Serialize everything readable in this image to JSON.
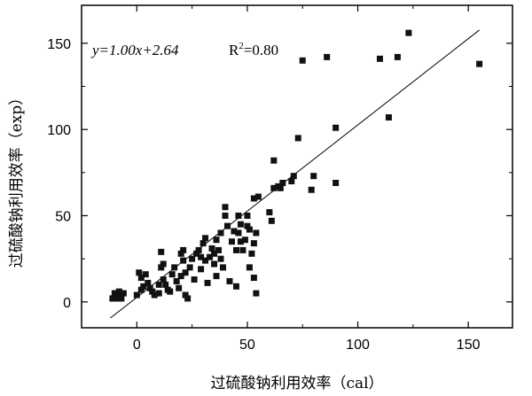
{
  "chart_data": {
    "type": "scatter",
    "xlabel": "过硫酸钠利用效率（cal）",
    "ylabel": "过硫酸钠利用效率（exp）",
    "xlim": [
      -25,
      170
    ],
    "ylim": [
      -15,
      172
    ],
    "xticks": [
      0,
      50,
      100,
      150
    ],
    "yticks": [
      0,
      50,
      100,
      150
    ],
    "annotation": {
      "equation": "y=1.00x+2.64",
      "r2_prefix": "R",
      "r2_sup": "2",
      "r2_suffix": "=0.80"
    },
    "fit_line": {
      "slope": 1.0,
      "intercept": 2.64,
      "x_range": [
        -12,
        155
      ]
    },
    "points": [
      [
        -11,
        2
      ],
      [
        -10,
        3
      ],
      [
        -9,
        4
      ],
      [
        -8,
        3
      ],
      [
        -7,
        5
      ],
      [
        -8,
        6
      ],
      [
        -10,
        5
      ],
      [
        -6,
        5
      ],
      [
        -9,
        2
      ],
      [
        -7,
        2
      ],
      [
        0,
        4
      ],
      [
        1,
        17
      ],
      [
        2,
        7
      ],
      [
        3,
        9
      ],
      [
        2,
        14
      ],
      [
        4,
        16
      ],
      [
        5,
        11
      ],
      [
        6,
        8
      ],
      [
        7,
        6
      ],
      [
        8,
        4
      ],
      [
        10,
        10
      ],
      [
        10,
        5
      ],
      [
        11,
        20
      ],
      [
        11,
        29
      ],
      [
        12,
        22
      ],
      [
        12,
        13
      ],
      [
        13,
        10
      ],
      [
        14,
        7
      ],
      [
        15,
        6
      ],
      [
        16,
        16
      ],
      [
        17,
        20
      ],
      [
        18,
        12
      ],
      [
        19,
        8
      ],
      [
        20,
        15
      ],
      [
        20,
        28
      ],
      [
        21,
        24
      ],
      [
        21,
        30
      ],
      [
        22,
        17
      ],
      [
        22,
        4
      ],
      [
        23,
        2
      ],
      [
        24,
        20
      ],
      [
        25,
        25
      ],
      [
        26,
        13
      ],
      [
        27,
        28
      ],
      [
        28,
        30
      ],
      [
        29,
        19
      ],
      [
        29,
        26
      ],
      [
        30,
        34
      ],
      [
        31,
        24
      ],
      [
        31,
        37
      ],
      [
        32,
        11
      ],
      [
        33,
        26
      ],
      [
        34,
        31
      ],
      [
        35,
        22
      ],
      [
        35,
        28
      ],
      [
        36,
        15
      ],
      [
        36,
        36
      ],
      [
        37,
        30
      ],
      [
        38,
        40
      ],
      [
        38,
        25
      ],
      [
        39,
        20
      ],
      [
        40,
        55
      ],
      [
        40,
        50
      ],
      [
        41,
        44
      ],
      [
        42,
        12
      ],
      [
        43,
        35
      ],
      [
        44,
        41
      ],
      [
        45,
        9
      ],
      [
        45,
        30
      ],
      [
        46,
        40
      ],
      [
        46,
        50
      ],
      [
        47,
        35
      ],
      [
        47,
        45
      ],
      [
        48,
        30
      ],
      [
        49,
        36
      ],
      [
        50,
        50
      ],
      [
        50,
        44
      ],
      [
        51,
        20
      ],
      [
        51,
        42
      ],
      [
        52,
        28
      ],
      [
        53,
        34
      ],
      [
        54,
        40
      ],
      [
        53,
        60
      ],
      [
        53,
        14
      ],
      [
        54,
        5
      ],
      [
        55,
        61
      ],
      [
        60,
        52
      ],
      [
        61,
        47
      ],
      [
        62,
        66
      ],
      [
        62,
        82
      ],
      [
        64,
        67
      ],
      [
        65,
        66
      ],
      [
        66,
        69
      ],
      [
        70,
        70
      ],
      [
        71,
        73
      ],
      [
        73,
        95
      ],
      [
        75,
        140
      ],
      [
        79,
        65
      ],
      [
        80,
        73
      ],
      [
        86,
        142
      ],
      [
        90,
        69
      ],
      [
        90,
        101
      ],
      [
        110,
        141
      ],
      [
        114,
        107
      ],
      [
        118,
        142
      ],
      [
        123,
        156
      ],
      [
        155,
        138
      ]
    ]
  }
}
